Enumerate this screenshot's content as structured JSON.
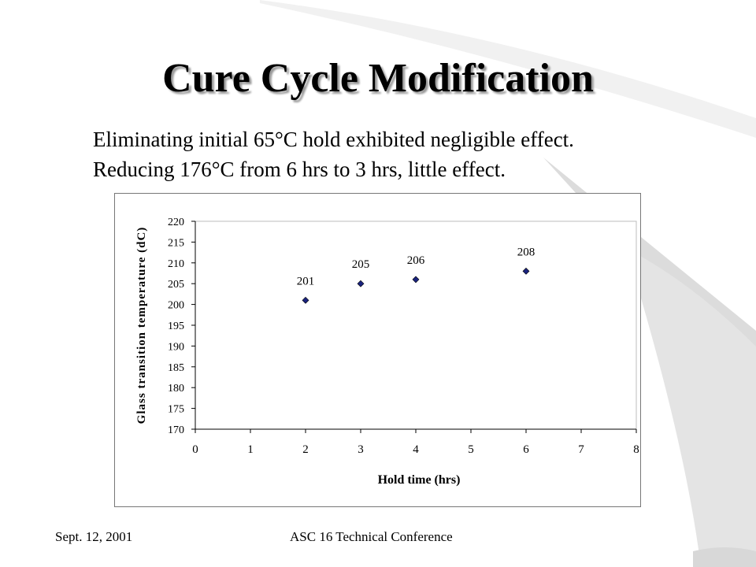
{
  "slide": {
    "title": "Cure Cycle Modification",
    "bullets": [
      "Eliminating initial 65°C hold exhibited negligible effect.",
      "Reducing 176°C from 6 hrs to 3 hrs, little effect."
    ],
    "footer_left": "Sept. 12, 2001",
    "footer_center": "ASC 16 Technical Conference"
  },
  "chart_data": {
    "type": "scatter",
    "title": "",
    "xlabel": "Hold time (hrs)",
    "ylabel": "Glass transition temperature (dC)",
    "xlim": [
      0,
      8
    ],
    "ylim": [
      170,
      220
    ],
    "xticks": [
      0,
      1,
      2,
      3,
      4,
      5,
      6,
      7,
      8
    ],
    "yticks": [
      170,
      175,
      180,
      185,
      190,
      195,
      200,
      205,
      210,
      215,
      220
    ],
    "grid": false,
    "legend": false,
    "marker": "diamond",
    "marker_color": "#1a237e",
    "series": [
      {
        "x": [
          2,
          3,
          4,
          6
        ],
        "y": [
          201,
          205,
          206,
          208
        ],
        "labels": [
          "201",
          "205",
          "206",
          "208"
        ]
      }
    ]
  }
}
